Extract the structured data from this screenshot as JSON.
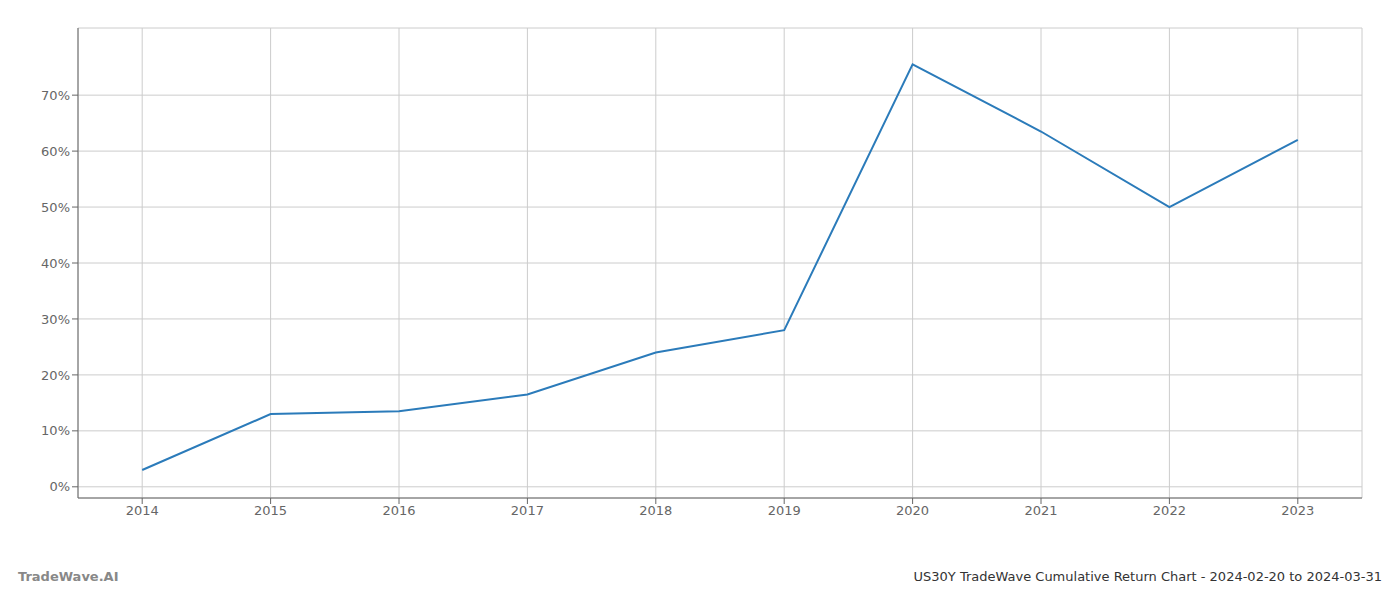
{
  "chart_data": {
    "type": "line",
    "x": [
      2014,
      2015,
      2016,
      2017,
      2018,
      2019,
      2020,
      2021,
      2022,
      2023
    ],
    "values": [
      3.0,
      13.0,
      13.5,
      16.5,
      24.0,
      28.0,
      75.5,
      63.5,
      50.0,
      62.0
    ],
    "color": "#2b7bba",
    "xlim": [
      2013.5,
      2023.5
    ],
    "ylim": [
      -2,
      82
    ],
    "xticks": [
      2014,
      2015,
      2016,
      2017,
      2018,
      2019,
      2020,
      2021,
      2022,
      2023
    ],
    "yticks": [
      {
        "value": 0,
        "label": "0%"
      },
      {
        "value": 10,
        "label": "10%"
      },
      {
        "value": 20,
        "label": "20%"
      },
      {
        "value": 30,
        "label": "30%"
      },
      {
        "value": 40,
        "label": "40%"
      },
      {
        "value": 50,
        "label": "50%"
      },
      {
        "value": 60,
        "label": "60%"
      },
      {
        "value": 70,
        "label": "70%"
      }
    ],
    "grid": true,
    "annotations": [
      "TradeWave.AI",
      "US30Y TradeWave Cumulative Return Chart - 2024-02-20 to 2024-03-31"
    ]
  }
}
